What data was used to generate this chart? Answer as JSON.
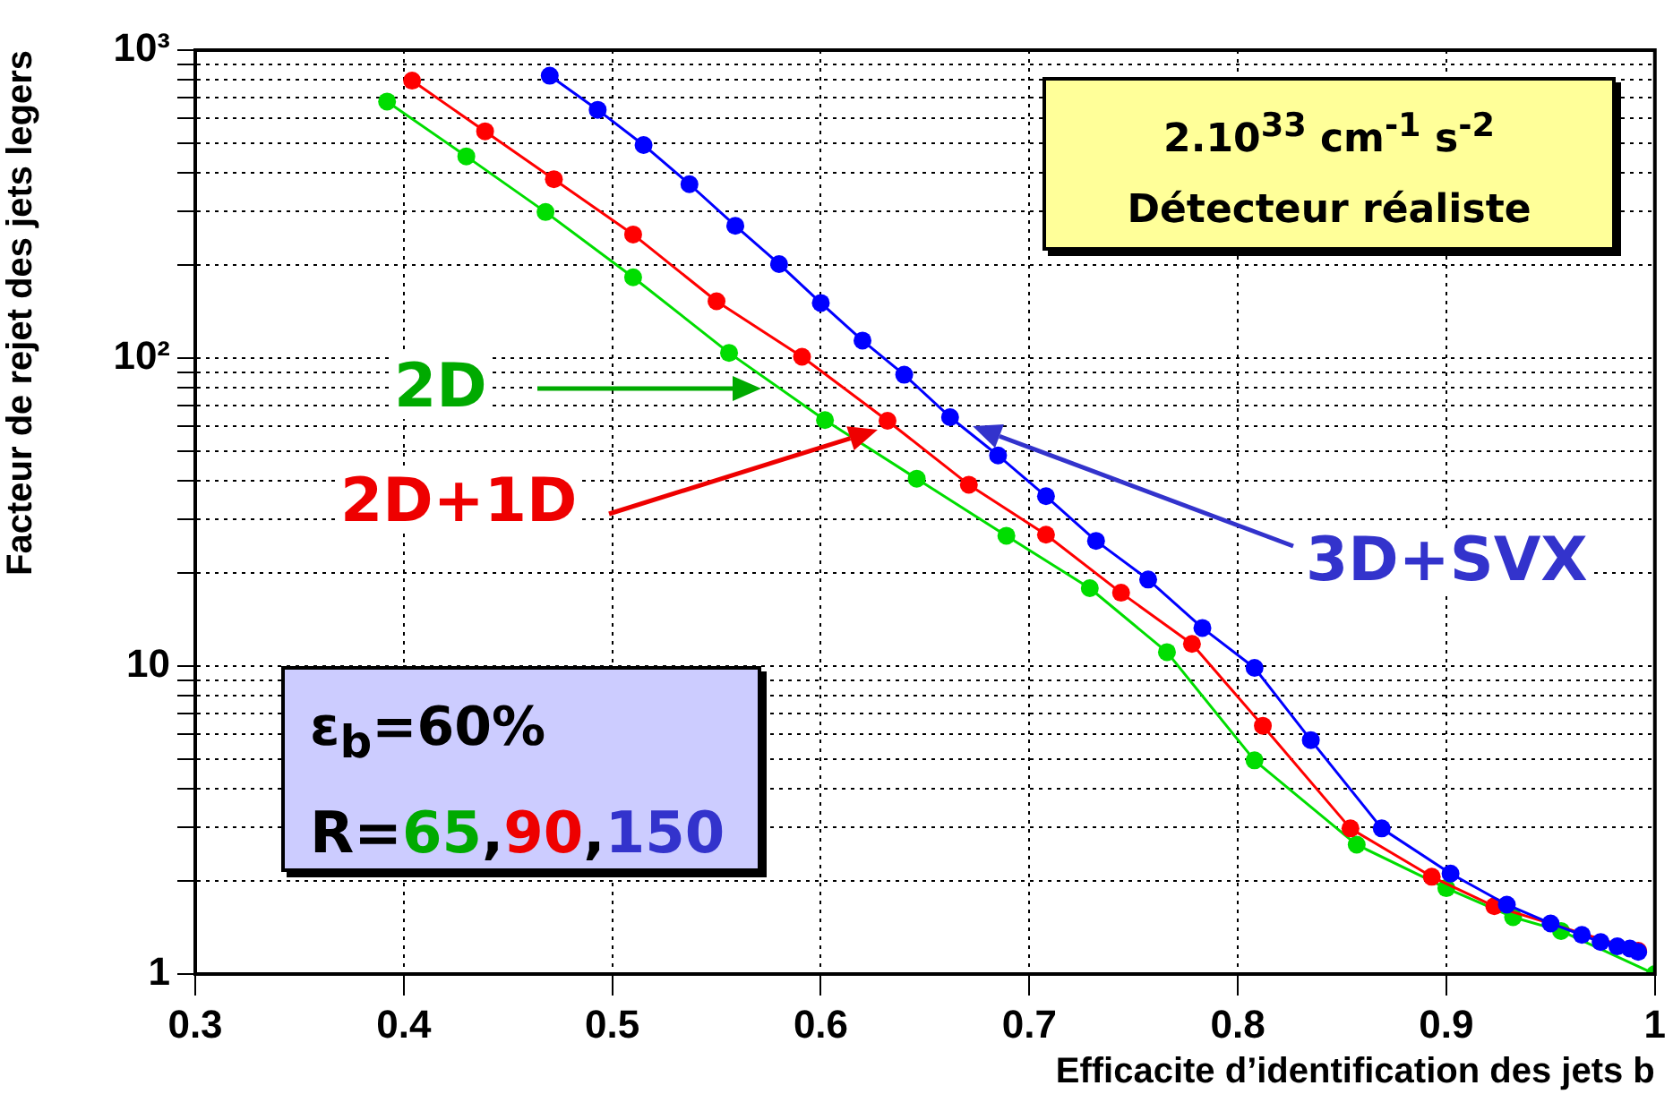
{
  "chart_data": {
    "type": "line",
    "xlabel": "Efficacite d’identification des jets b",
    "ylabel": "Facteur de rejet des jets legers",
    "xlim": [
      0.3,
      1.0
    ],
    "xticks": [
      0.3,
      0.4,
      0.5,
      0.6,
      0.7,
      0.8,
      0.9,
      {
        "value": 1.0,
        "label": "1"
      }
    ],
    "ylim": [
      1,
      1000
    ],
    "yticks": [
      1,
      {
        "value": 2,
        "label": null
      },
      {
        "value": 3,
        "label": null
      },
      {
        "value": 4,
        "label": null
      },
      {
        "value": 5,
        "label": null
      },
      {
        "value": 6,
        "label": null
      },
      {
        "value": 7,
        "label": null
      },
      {
        "value": 8,
        "label": null
      },
      {
        "value": 9,
        "label": null
      },
      10,
      {
        "value": 20,
        "label": null
      },
      {
        "value": 30,
        "label": null
      },
      {
        "value": 40,
        "label": null
      },
      {
        "value": 50,
        "label": null
      },
      {
        "value": 60,
        "label": null
      },
      {
        "value": 70,
        "label": null
      },
      {
        "value": 80,
        "label": null
      },
      {
        "value": 90,
        "label": null
      },
      {
        "value": 100,
        "label": "10²"
      },
      {
        "value": 200,
        "label": null
      },
      {
        "value": 300,
        "label": null
      },
      {
        "value": 400,
        "label": null
      },
      {
        "value": 500,
        "label": null
      },
      {
        "value": 600,
        "label": null
      },
      {
        "value": 700,
        "label": null
      },
      {
        "value": 800,
        "label": null
      },
      {
        "value": 900,
        "label": null
      },
      {
        "value": 1000,
        "label": "10³"
      }
    ],
    "log": "y",
    "grid": true,
    "legend": false,
    "marker": "circle",
    "line_style": "solid",
    "series": [
      {
        "name": "2D",
        "color": "#00dd00",
        "x": [
          0.392,
          0.43,
          0.468,
          0.51,
          0.556,
          0.602,
          0.646,
          0.689,
          0.729,
          0.766,
          0.808,
          0.857,
          0.9,
          0.932,
          0.955,
          0.971,
          0.98,
          0.986,
          1.0
        ],
        "values": [
          681,
          452,
          298,
          183,
          104,
          62.9,
          40.6,
          26.5,
          17.9,
          11.1,
          4.94,
          2.63,
          1.9,
          1.53,
          1.38,
          null,
          null,
          null,
          1.0
        ]
      },
      {
        "name": "2D+1D",
        "color": "#ff0000",
        "x": [
          0.404,
          0.439,
          0.472,
          0.51,
          0.55,
          0.591,
          0.632,
          0.671,
          0.708,
          0.744,
          0.778,
          0.812,
          0.854,
          0.893,
          0.923,
          0.946,
          0.964,
          0.976,
          0.985,
          0.992
        ],
        "values": [
          796,
          545,
          381,
          252,
          153,
          101,
          62.6,
          38.8,
          26.7,
          17.3,
          11.8,
          6.4,
          2.97,
          2.07,
          1.66,
          null,
          null,
          null,
          null,
          1.19
        ]
      },
      {
        "name": "3D+SVX",
        "color": "#0000ff",
        "x": [
          0.47,
          0.493,
          0.515,
          0.537,
          0.559,
          0.58,
          0.6,
          0.62,
          0.64,
          0.662,
          0.685,
          0.708,
          0.732,
          0.757,
          0.783,
          0.808,
          0.835,
          0.869,
          0.902,
          0.929,
          0.95,
          0.965,
          0.974,
          0.982,
          0.988,
          0.992
        ],
        "values": [
          826,
          640,
          492,
          367,
          269,
          202,
          151,
          114,
          88.3,
          64.3,
          48.3,
          35.6,
          25.5,
          19.1,
          13.3,
          9.87,
          5.75,
          2.97,
          2.12,
          1.68,
          1.46,
          1.34,
          1.27,
          1.23,
          1.21,
          1.18
        ]
      }
    ],
    "annotations": [
      "2.10$^{33}$ cm$^{-1}$ s$^{-2}$",
      "Détecteur réaliste",
      "ε$_{b}$=60%",
      "R=65,90,150"
    ]
  }
}
